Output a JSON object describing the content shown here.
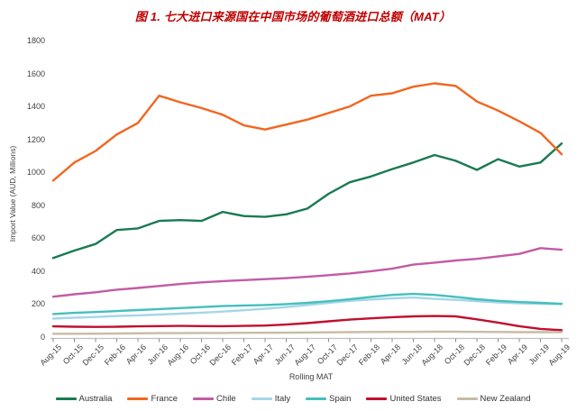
{
  "chart_data": {
    "type": "line",
    "title": "图 1. 七大进口来源国在中国市场的葡萄酒进口总额（MAT）",
    "title_color": "#C00000",
    "xlabel": "Rolling MAT",
    "ylabel": "Import Value (AUD, Millions)",
    "ylim": [
      0,
      1800
    ],
    "ytick_step": 200,
    "grid": false,
    "legend_position": "bottom",
    "axis_text_color": "#404040",
    "axis_line_color": "#BFBFBF",
    "tick_mark_color": "#8C8C8C",
    "categories": [
      "Aug-15",
      "Oct-15",
      "Dec-15",
      "Feb-16",
      "Apr-16",
      "Jun-16",
      "Aug-16",
      "Oct-16",
      "Dec-16",
      "Feb-17",
      "Apr-17",
      "Jun-17",
      "Aug-17",
      "Oct-17",
      "Dec-17",
      "Feb-18",
      "Apr-18",
      "Jun-18",
      "Aug-18",
      "Oct-18",
      "Dec-18",
      "Feb-19",
      "Apr-19",
      "Jun-19",
      "Aug-19"
    ],
    "series": [
      {
        "name": "Australia",
        "color": "#1A7A52",
        "values": [
          480,
          525,
          565,
          650,
          660,
          705,
          710,
          705,
          760,
          735,
          730,
          745,
          780,
          870,
          940,
          975,
          1020,
          1060,
          1105,
          1070,
          1015,
          1080,
          1035,
          1060,
          1175
        ]
      },
      {
        "name": "France",
        "color": "#F2661E",
        "values": [
          950,
          1060,
          1130,
          1230,
          1300,
          1465,
          1425,
          1390,
          1350,
          1285,
          1260,
          1290,
          1320,
          1360,
          1400,
          1465,
          1480,
          1520,
          1540,
          1525,
          1430,
          1375,
          1310,
          1240,
          1110
        ]
      },
      {
        "name": "Chile",
        "color": "#C35BA3",
        "values": [
          245,
          260,
          272,
          288,
          298,
          310,
          322,
          332,
          340,
          346,
          352,
          358,
          366,
          376,
          386,
          400,
          415,
          440,
          452,
          465,
          475,
          490,
          505,
          540,
          530
        ]
      },
      {
        "name": "Italy",
        "color": "#A5D6E8",
        "values": [
          112,
          118,
          122,
          128,
          132,
          137,
          142,
          148,
          155,
          163,
          172,
          182,
          195,
          208,
          220,
          228,
          235,
          240,
          232,
          226,
          218,
          210,
          205,
          202,
          200
        ]
      },
      {
        "name": "Spain",
        "color": "#45BFBD",
        "values": [
          140,
          147,
          152,
          158,
          164,
          170,
          176,
          182,
          188,
          192,
          195,
          200,
          208,
          218,
          230,
          244,
          256,
          262,
          256,
          244,
          230,
          220,
          213,
          208,
          202
        ]
      },
      {
        "name": "United States",
        "color": "#C00F2D",
        "values": [
          65,
          63,
          62,
          63,
          65,
          67,
          68,
          67,
          66,
          68,
          70,
          76,
          85,
          96,
          106,
          114,
          121,
          126,
          128,
          126,
          108,
          88,
          66,
          50,
          42
        ]
      },
      {
        "name": "New Zealand",
        "color": "#C7BCA4",
        "values": [
          20,
          20,
          21,
          22,
          23,
          24,
          24,
          25,
          25,
          26,
          26,
          27,
          28,
          29,
          30,
          31,
          32,
          32,
          33,
          33,
          32,
          31,
          30,
          30,
          30
        ]
      }
    ]
  }
}
